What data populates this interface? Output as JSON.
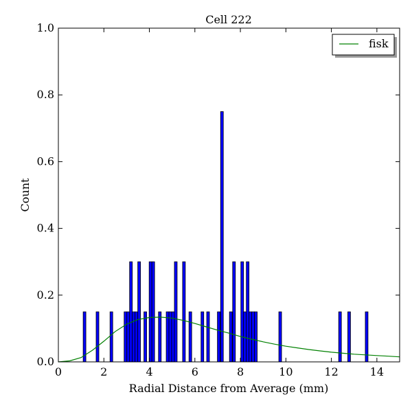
{
  "chart_data": {
    "type": "bar",
    "title": "Cell 222",
    "xlabel": "Radial Distance from Average (mm)",
    "ylabel": "Count",
    "xlim": [
      0,
      15
    ],
    "ylim": [
      0,
      1.0
    ],
    "xticks": [
      0,
      2,
      4,
      6,
      8,
      10,
      12,
      14
    ],
    "yticks": [
      0.0,
      0.2,
      0.4,
      0.6,
      0.8,
      1.0
    ],
    "xtick_labels": [
      "0",
      "2",
      "4",
      "6",
      "8",
      "10",
      "12",
      "14"
    ],
    "ytick_labels": [
      "0.0",
      "0.2",
      "0.4",
      "0.6",
      "0.8",
      "1.0"
    ],
    "grid": false,
    "bin_width": 0.12,
    "bar_color": "#0000ff",
    "bars": [
      {
        "x": 1.15,
        "y": 0.15
      },
      {
        "x": 1.72,
        "y": 0.15
      },
      {
        "x": 2.33,
        "y": 0.15
      },
      {
        "x": 2.95,
        "y": 0.15
      },
      {
        "x": 3.07,
        "y": 0.15
      },
      {
        "x": 3.19,
        "y": 0.3
      },
      {
        "x": 3.31,
        "y": 0.15
      },
      {
        "x": 3.43,
        "y": 0.15
      },
      {
        "x": 3.55,
        "y": 0.3
      },
      {
        "x": 3.82,
        "y": 0.15
      },
      {
        "x": 4.05,
        "y": 0.3
      },
      {
        "x": 4.17,
        "y": 0.3
      },
      {
        "x": 4.46,
        "y": 0.15
      },
      {
        "x": 4.8,
        "y": 0.15
      },
      {
        "x": 4.92,
        "y": 0.15
      },
      {
        "x": 5.04,
        "y": 0.15
      },
      {
        "x": 5.16,
        "y": 0.3
      },
      {
        "x": 5.52,
        "y": 0.3
      },
      {
        "x": 5.8,
        "y": 0.15
      },
      {
        "x": 6.33,
        "y": 0.15
      },
      {
        "x": 6.58,
        "y": 0.15
      },
      {
        "x": 7.05,
        "y": 0.15
      },
      {
        "x": 7.19,
        "y": 0.75
      },
      {
        "x": 7.58,
        "y": 0.15
      },
      {
        "x": 7.72,
        "y": 0.3
      },
      {
        "x": 8.08,
        "y": 0.3
      },
      {
        "x": 8.2,
        "y": 0.15
      },
      {
        "x": 8.32,
        "y": 0.3
      },
      {
        "x": 8.44,
        "y": 0.15
      },
      {
        "x": 8.56,
        "y": 0.15
      },
      {
        "x": 8.68,
        "y": 0.15
      },
      {
        "x": 9.75,
        "y": 0.15
      },
      {
        "x": 12.38,
        "y": 0.15
      },
      {
        "x": 12.78,
        "y": 0.15
      },
      {
        "x": 13.55,
        "y": 0.15
      }
    ],
    "series": [
      {
        "name": "fisk",
        "type": "line",
        "color": "#008000",
        "x": [
          0,
          0.5,
          1.0,
          1.5,
          2.0,
          2.5,
          3.0,
          3.5,
          4.0,
          4.5,
          5.0,
          5.5,
          6.0,
          6.5,
          7.0,
          7.5,
          8.0,
          8.5,
          9.0,
          9.5,
          10.0,
          10.5,
          11.0,
          11.5,
          12.0,
          12.5,
          13.0,
          13.5,
          14.0,
          14.5,
          15.0
        ],
        "y": [
          0.0,
          0.003,
          0.013,
          0.035,
          0.062,
          0.091,
          0.113,
          0.127,
          0.133,
          0.134,
          0.131,
          0.124,
          0.115,
          0.105,
          0.095,
          0.086,
          0.076,
          0.068,
          0.06,
          0.053,
          0.047,
          0.042,
          0.037,
          0.033,
          0.029,
          0.026,
          0.023,
          0.021,
          0.019,
          0.017,
          0.015
        ]
      }
    ],
    "legend": {
      "position": "top-right",
      "entries": [
        "fisk"
      ]
    }
  }
}
